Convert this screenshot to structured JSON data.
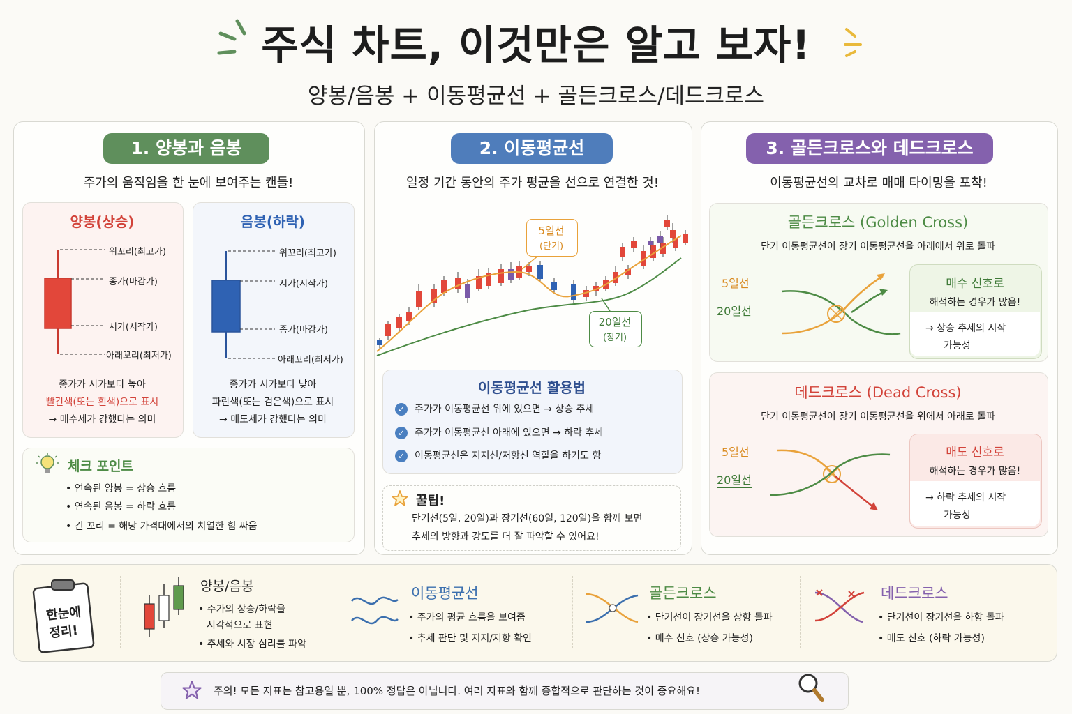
{
  "header": {
    "title": "주식 차트, 이것만은 알고 보자!",
    "subtitle": "양봉/음봉 + 이동평균선 + 골든크로스/데드크로스"
  },
  "section1": {
    "pill": "1. 양봉과 음봉",
    "tagline": "주가의 움직임을 한 눈에 보여주는 캔들!",
    "bull": {
      "title": "양봉(상승)",
      "labels": [
        "위꼬리(최고가)",
        "종가(마감가)",
        "시가(시작가)",
        "아래꼬리(최저가)"
      ],
      "desc1": "종가가 시가보다 높아",
      "desc2": "빨간색(또는 흰색)으로 표시",
      "desc3": "→ 매수세가 강했다는 의미"
    },
    "bear": {
      "title": "음봉(하락)",
      "labels": [
        "위꼬리(최고가)",
        "시가(시작가)",
        "종가(마감가)",
        "아래꼬리(최저가)"
      ],
      "desc1": "종가가 시가보다 낮아",
      "desc2": "파란색(또는 검은색)으로 표시",
      "desc3": "→ 매도세가 강했다는 의미"
    },
    "check": {
      "title": "체크 포인트",
      "items": [
        "• 연속된 양봉 = 상승 흐름",
        "• 연속된 음봉 = 하락 흐름",
        "• 긴 꼬리 = 해당 가격대에서의 치열한 힘 싸움"
      ]
    }
  },
  "section2": {
    "pill": "2. 이동평균선",
    "tagline": "일정 기간 동안의 주가 평균을 선으로 연결한 것!",
    "ma5_label1": "5일선",
    "ma5_label2": "(단기)",
    "ma20_label1": "20일선",
    "ma20_label2": "(장기)",
    "usage": {
      "title": "이동평균선 활용법",
      "items": [
        "주가가 이동평균선 위에 있으면 → 상승 추세",
        "주가가 이동평균선 아래에 있으면 → 하락 추세",
        "이동평균선은 지지선/저항선 역할을 하기도 함"
      ]
    },
    "tip": {
      "title": "꿀팁!",
      "line1": "단기선(5일, 20일)과 장기선(60일, 120일)을 함께 보면",
      "line2": "추세의 방향과 강도를 더 잘 파악할 수 있어요!"
    }
  },
  "section3": {
    "pill": "3. 골든크로스와 데드크로스",
    "tagline": "이동평균선의 교차로 매매 타이밍을 포착!",
    "golden": {
      "title": "골든크로스 (Golden Cross)",
      "desc": "단기 이동평균선이 장기 이동평균선을 아래에서 위로 돌파",
      "short": "5일선",
      "long": "20일선",
      "signal_title": "매수 신호로",
      "signal_sub": "해석하는 경우가 많음!",
      "signal_l1": "→ 상승 추세의 시작",
      "signal_l2": "가능성"
    },
    "dead": {
      "title": "데드크로스 (Dead Cross)",
      "desc": "단기 이동평균선이 장기 이동평균선을 위에서 아래로 돌파",
      "short": "5일선",
      "long": "20일선",
      "signal_title": "매도 신호로",
      "signal_sub": "해석하는 경우가 많음!",
      "signal_l1": "→ 하락 추세의 시작",
      "signal_l2": "가능성"
    }
  },
  "summary": {
    "badge1": "한눈에",
    "badge2": "정리!",
    "candle": {
      "title": "양봉/음봉",
      "l1": "• 주가의 상승/하락을",
      "l2": "시각적으로 표현",
      "l3": "• 추세와 시장 심리를 파악"
    },
    "ma": {
      "title": "이동평균선",
      "l1": "• 주가의 평균 흐름을 보여줌",
      "l2": "• 추세 판단 및 지지/저항 확인"
    },
    "golden": {
      "title": "골든크로스",
      "l1": "• 단기선이 장기선을 상향 돌파",
      "l2": "• 매수 신호 (상승 가능성)"
    },
    "dead": {
      "title": "데드크로스",
      "l1": "• 단기선이 장기선을 하향 돌파",
      "l2": "• 매도 신호 (하락 가능성)"
    }
  },
  "footer": {
    "note": "주의! 모든 지표는 참고용일 뿐, 100% 정답은 아닙니다. 여러 지표와 함께 종합적으로 판단하는 것이 중요해요!"
  },
  "colors": {
    "green_pill": "#5f8f5c",
    "blue_pill": "#4f7dbb",
    "purple_pill": "#8461ad",
    "bull_red": "#e2473a",
    "bear_blue": "#2f62b3",
    "ma5_orange": "#e9a23b",
    "ma20_green": "#4d8b45"
  },
  "icons": [
    "lightbulb-icon",
    "check-circle-icon",
    "star-icon",
    "clipboard-icon",
    "magnifier-icon",
    "sparkle-icon"
  ]
}
